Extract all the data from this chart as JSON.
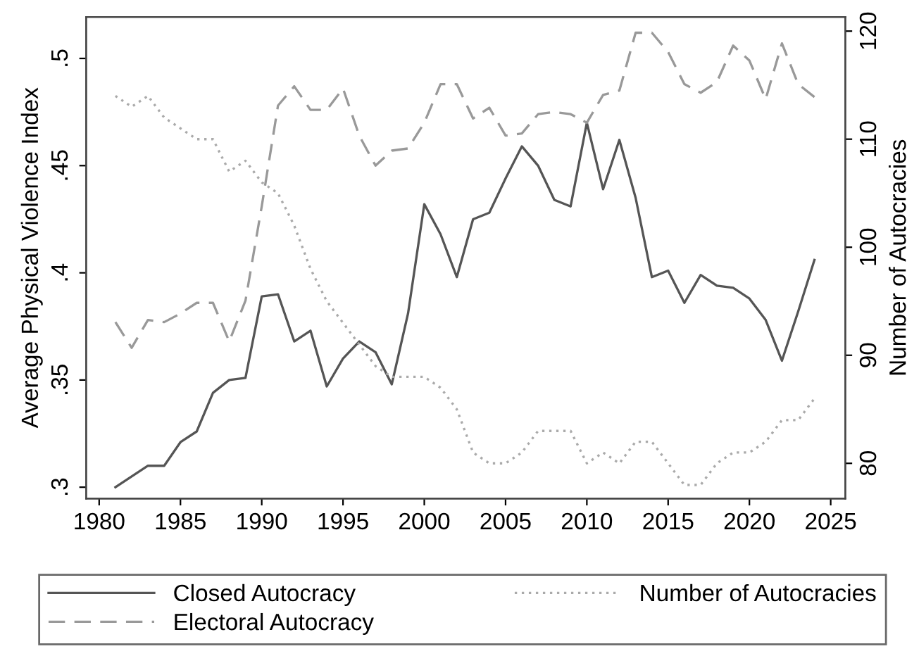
{
  "chart_data": {
    "type": "line",
    "xlabel": null,
    "ylabel": "Average Physical Violence Index",
    "y2label": "Number of Autocracies",
    "x": [
      1981,
      1982,
      1983,
      1984,
      1985,
      1986,
      1987,
      1988,
      1989,
      1990,
      1991,
      1992,
      1993,
      1994,
      1995,
      1996,
      1997,
      1998,
      1999,
      2000,
      2001,
      2002,
      2003,
      2004,
      2005,
      2006,
      2007,
      2008,
      2009,
      2010,
      2011,
      2012,
      2013,
      2014,
      2015,
      2016,
      2017,
      2018,
      2019,
      2020,
      2021,
      2022,
      2023,
      2024
    ],
    "series": [
      {
        "name": "Closed Autocracy",
        "color": "#555555",
        "line_style": "solid",
        "values": [
          0.3,
          0.305,
          0.31,
          0.31,
          0.321,
          0.326,
          0.344,
          0.35,
          0.351,
          0.389,
          0.39,
          0.368,
          0.373,
          0.347,
          0.36,
          0.368,
          0.363,
          0.348,
          0.381,
          0.432,
          0.418,
          0.398,
          0.425,
          0.428,
          0.444,
          0.459,
          0.45,
          0.434,
          0.431,
          0.47,
          0.439,
          0.462,
          0.435,
          0.398,
          0.401,
          0.386,
          0.399,
          0.394,
          0.393,
          0.388,
          0.378,
          0.359,
          0.382,
          0.406
        ]
      },
      {
        "name": "Electoral Autocracy",
        "color": "#999999",
        "line_style": "dashed",
        "values": [
          0.377,
          0.365,
          0.378,
          0.377,
          0.381,
          0.386,
          0.386,
          0.368,
          0.387,
          0.431,
          0.478,
          0.487,
          0.476,
          0.476,
          0.486,
          0.464,
          0.45,
          0.457,
          0.458,
          0.47,
          0.488,
          0.488,
          0.472,
          0.477,
          0.464,
          0.465,
          0.474,
          0.475,
          0.474,
          0.47,
          0.483,
          0.485,
          0.512,
          0.512,
          0.503,
          0.488,
          0.484,
          0.489,
          0.506,
          0.499,
          0.481,
          0.507,
          0.488,
          0.482
        ]
      },
      {
        "name": "Number of Autocracies",
        "color": "#aaaaaa",
        "line_style": "dotted",
        "axis": "y2",
        "values": [
          114,
          113,
          114,
          112,
          111,
          110,
          110,
          107,
          108,
          106,
          105,
          102,
          98,
          95,
          93,
          91,
          89,
          88,
          88,
          88,
          87,
          85,
          81,
          80,
          80,
          81,
          83,
          83,
          83,
          80,
          81,
          80,
          82,
          82,
          80,
          78,
          78,
          80,
          81,
          81,
          82,
          84,
          84,
          86
        ]
      }
    ],
    "xlim": [
      1979.2,
      2025.9
    ],
    "xticks": [
      1980,
      1985,
      1990,
      1995,
      2000,
      2005,
      2010,
      2015,
      2020,
      2025
    ],
    "ylim": [
      0.2947,
      0.5193
    ],
    "yticks": [
      {
        "value": 0.3,
        "label": ".3"
      },
      {
        "value": 0.35,
        "label": ".35"
      },
      {
        "value": 0.4,
        "label": ".4"
      },
      {
        "value": 0.45,
        "label": ".45"
      },
      {
        "value": 0.5,
        "label": ".5"
      }
    ],
    "y2lim": [
      76.74,
      121.3
    ],
    "y2ticks": [
      80,
      90,
      100,
      110,
      120
    ],
    "grid": false,
    "legend": "bottom"
  }
}
